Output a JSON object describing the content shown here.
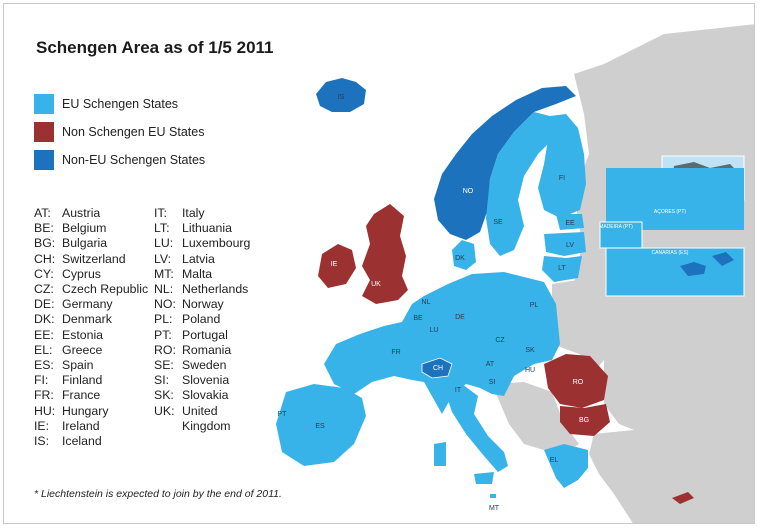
{
  "title": "Schengen Area as of 1/5 2011",
  "legend": [
    {
      "label": "EU Schengen States",
      "color": "#38b3ea"
    },
    {
      "label": "Non Schengen EU States",
      "color": "#9b3131"
    },
    {
      "label": "Non-EU Schengen States",
      "color": "#1d72be"
    }
  ],
  "abbreviations_col1": [
    {
      "code": "AT:",
      "name": "Austria"
    },
    {
      "code": "BE:",
      "name": "Belgium"
    },
    {
      "code": "BG:",
      "name": "Bulgaria"
    },
    {
      "code": "CH:",
      "name": "Switzerland"
    },
    {
      "code": "CY:",
      "name": "Cyprus"
    },
    {
      "code": "CZ:",
      "name": "Czech Republic"
    },
    {
      "code": "DE:",
      "name": "Germany"
    },
    {
      "code": "DK:",
      "name": "Denmark"
    },
    {
      "code": "EE:",
      "name": "Estonia"
    },
    {
      "code": "EL:",
      "name": "Greece"
    },
    {
      "code": "ES:",
      "name": "Spain"
    },
    {
      "code": "FI:",
      "name": "Finland"
    },
    {
      "code": "FR:",
      "name": "France"
    },
    {
      "code": "HU:",
      "name": "Hungary"
    },
    {
      "code": "IE:",
      "name": "Ireland"
    },
    {
      "code": "IS:",
      "name": "Iceland"
    }
  ],
  "abbreviations_col2": [
    {
      "code": "IT:",
      "name": "Italy"
    },
    {
      "code": "LT:",
      "name": "Lithuania"
    },
    {
      "code": "LU:",
      "name": "Luxembourg"
    },
    {
      "code": "LV:",
      "name": "Latvia"
    },
    {
      "code": "MT:",
      "name": "Malta"
    },
    {
      "code": "NL:",
      "name": "Netherlands"
    },
    {
      "code": "NO:",
      "name": "Norway"
    },
    {
      "code": "PL:",
      "name": "Poland"
    },
    {
      "code": "PT:",
      "name": "Portugal"
    },
    {
      "code": "RO:",
      "name": "Romania"
    },
    {
      "code": "SE:",
      "name": "Sweden"
    },
    {
      "code": "SI:",
      "name": "Slovenia"
    },
    {
      "code": "SK:",
      "name": "Slovakia"
    },
    {
      "code": "UK:",
      "name": "United"
    },
    {
      "code": "",
      "name": "Kingdom"
    }
  ],
  "footnote": "* Liechtenstein is expected to join by the end of 2011.",
  "map_labels": {
    "IS": "IS",
    "NO": "NO",
    "SE": "SE",
    "FI": "FI",
    "EE": "EE",
    "LV": "LV",
    "LT": "LT",
    "DK": "DK",
    "IE": "IE",
    "UK": "UK",
    "NL": "NL",
    "BE": "BE",
    "LU": "LU",
    "DE": "DE",
    "PL": "PL",
    "CZ": "CZ",
    "SK": "SK",
    "AT": "AT",
    "HU": "HU",
    "CH": "CH",
    "SI": "SI",
    "FR": "FR",
    "IT": "IT",
    "RO": "RO",
    "BG": "BG",
    "PT": "PT",
    "ES": "ES",
    "EL": "EL",
    "MT": "MT"
  },
  "inset_labels": {
    "acores": "AÇORES (PT)",
    "madeira": "MADEIRA (PT)",
    "canarias": "CANARIAS (ES)"
  }
}
